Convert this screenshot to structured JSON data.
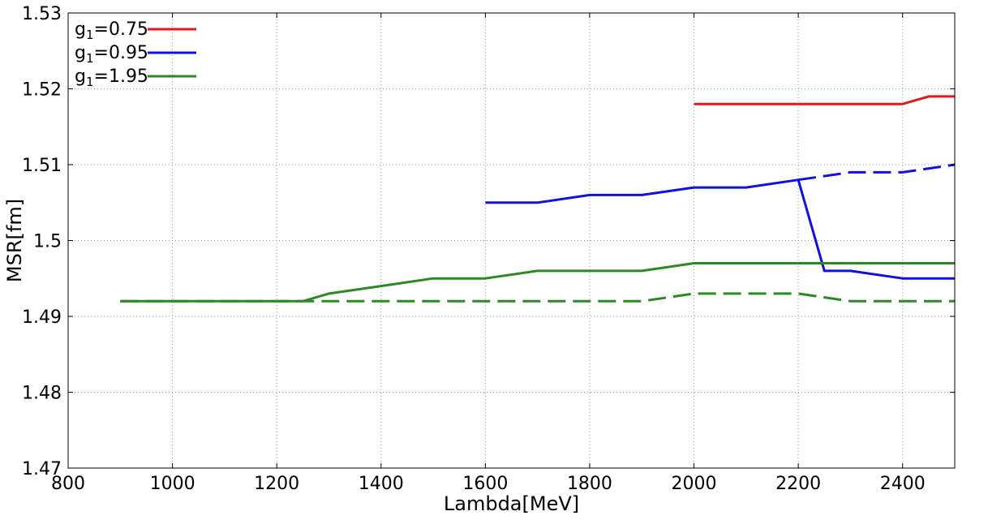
{
  "chart_data": {
    "type": "line",
    "title": "",
    "xlabel": "Lambda[MeV]",
    "ylabel": "MSR[fm]",
    "xlim": [
      800,
      2500
    ],
    "ylim": [
      1.47,
      1.53
    ],
    "xticks": [
      800,
      1000,
      1200,
      1400,
      1600,
      1800,
      2000,
      2200,
      2400
    ],
    "yticks": [
      1.47,
      1.48,
      1.49,
      1.5,
      1.51,
      1.52,
      1.53
    ],
    "grid": true,
    "legend_position": "top-left",
    "series": [
      {
        "name": "g1=0.75",
        "legend_base": "g",
        "legend_sub": "1",
        "legend_rest": "=0.75",
        "color": "#e31a1c",
        "style": "solid",
        "x": [
          2000,
          2100,
          2200,
          2300,
          2400,
          2450,
          2500
        ],
        "y": [
          1.518,
          1.518,
          1.518,
          1.518,
          1.518,
          1.519,
          1.519
        ]
      },
      {
        "name": "g1=0.95",
        "legend_base": "g",
        "legend_sub": "1",
        "legend_rest": "=0.95",
        "color": "#1010e0",
        "style": "solid",
        "x": [
          1600,
          1700,
          1800,
          1900,
          2000,
          2100,
          2200,
          2250,
          2300,
          2400,
          2500
        ],
        "y": [
          1.505,
          1.505,
          1.506,
          1.506,
          1.507,
          1.507,
          1.508,
          1.496,
          1.496,
          1.495,
          1.495
        ]
      },
      {
        "color": "#1010e0",
        "style": "dashed",
        "x": [
          2200,
          2300,
          2400,
          2500
        ],
        "y": [
          1.508,
          1.509,
          1.509,
          1.51
        ]
      },
      {
        "name": "g1=1.95",
        "legend_base": "g",
        "legend_sub": "1",
        "legend_rest": "=1.95",
        "color": "#2a8a22",
        "style": "solid",
        "x": [
          900,
          1000,
          1100,
          1200,
          1250,
          1300,
          1400,
          1500,
          1600,
          1700,
          1800,
          1900,
          2000,
          2100,
          2200,
          2300,
          2400,
          2500
        ],
        "y": [
          1.492,
          1.492,
          1.492,
          1.492,
          1.492,
          1.493,
          1.494,
          1.495,
          1.495,
          1.496,
          1.496,
          1.496,
          1.497,
          1.497,
          1.497,
          1.497,
          1.497,
          1.497
        ]
      },
      {
        "color": "#2a8a22",
        "style": "dashed",
        "x": [
          900,
          1000,
          1100,
          1200,
          1300,
          1400,
          1500,
          1600,
          1700,
          1800,
          1900,
          2000,
          2100,
          2200,
          2300,
          2400,
          2500
        ],
        "y": [
          1.492,
          1.492,
          1.492,
          1.492,
          1.492,
          1.492,
          1.492,
          1.492,
          1.492,
          1.492,
          1.492,
          1.493,
          1.493,
          1.493,
          1.492,
          1.492,
          1.492
        ]
      }
    ]
  }
}
